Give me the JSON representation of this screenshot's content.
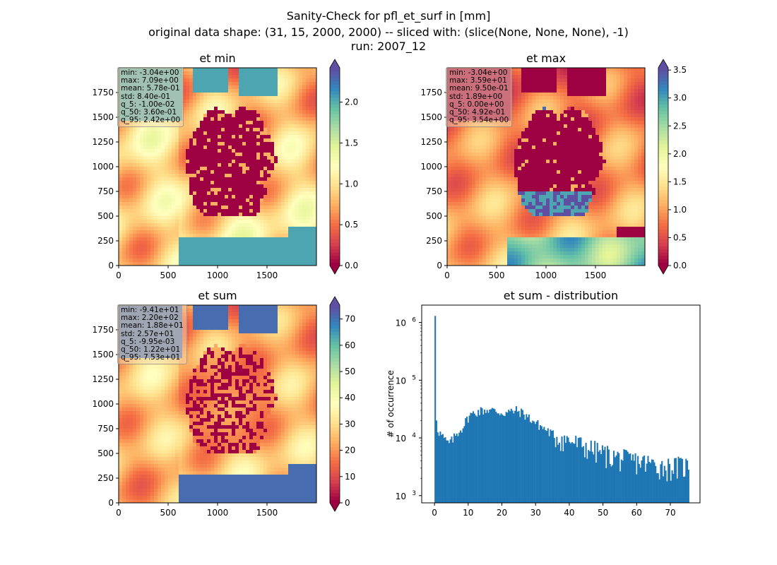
{
  "figure": {
    "title_line1": "Sanity-Check for pfl_et_surf in [mm]",
    "title_line2": "original data shape: (31, 15, 2000, 2000) -- sliced with: (slice(None, None, None), -1)",
    "title_line3": "run: 2007_12"
  },
  "colormap": [
    "#9e0142",
    "#d53e4f",
    "#f46d43",
    "#fdae61",
    "#fee08b",
    "#ffffbf",
    "#e6f598",
    "#abdda4",
    "#66c2a5",
    "#3288bd",
    "#5e4fa2"
  ],
  "chart_data": [
    {
      "type": "heatmap",
      "title": "et min",
      "xticks": [
        0,
        500,
        1000,
        1500
      ],
      "yticks": [
        0,
        250,
        500,
        750,
        1000,
        1250,
        1500,
        1750
      ],
      "xlim": [
        0,
        2000
      ],
      "ylim": [
        0,
        2000
      ],
      "colorbar": {
        "min": 0.0,
        "max": 2.42,
        "ticks": [
          "0.0",
          "0.5",
          "1.0",
          "1.5",
          "2.0"
        ],
        "tick_values": [
          0,
          0.5,
          1,
          1.5,
          2
        ]
      },
      "stats": [
        "min: -3.04e+00",
        "max: 7.09e+00",
        "mean: 5.78e-01",
        "std: 8.40e-01",
        "q_5: -1.00e-02",
        "q_50: 3.60e-01",
        "q_95: 2.42e+00"
      ]
    },
    {
      "type": "heatmap",
      "title": "et max",
      "xticks": [
        0,
        500,
        1000,
        1500
      ],
      "yticks": [
        0,
        250,
        500,
        750,
        1000,
        1250,
        1500,
        1750
      ],
      "xlim": [
        0,
        2000
      ],
      "ylim": [
        0,
        2000
      ],
      "colorbar": {
        "min": 0.0,
        "max": 3.54,
        "ticks": [
          "0.0",
          "0.5",
          "1.0",
          "1.5",
          "2.0",
          "2.5",
          "3.0",
          "3.5"
        ],
        "tick_values": [
          0,
          0.5,
          1,
          1.5,
          2,
          2.5,
          3,
          3.5
        ]
      },
      "stats": [
        "min: -3.04e+00",
        "max: 3.59e+01",
        "mean: 9.50e-01",
        "std: 1.89e+00",
        "q_5: 0.00e+00",
        "q_50: 4.92e-01",
        "q_95: 3.54e+00"
      ]
    },
    {
      "type": "heatmap",
      "title": "et sum",
      "xticks": [
        0,
        500,
        1000,
        1500
      ],
      "yticks": [
        0,
        250,
        500,
        750,
        1000,
        1250,
        1500,
        1750
      ],
      "xlim": [
        0,
        2000
      ],
      "ylim": [
        0,
        2000
      ],
      "colorbar": {
        "min": -0.01,
        "max": 75.3,
        "ticks": [
          "0",
          "10",
          "20",
          "30",
          "40",
          "50",
          "60",
          "70"
        ],
        "tick_values": [
          0,
          10,
          20,
          30,
          40,
          50,
          60,
          70
        ]
      },
      "stats": [
        "min: -9.41e+01",
        "max: 2.20e+02",
        "mean: 1.88e+01",
        "std: 2.57e+01",
        "q_5: -9.95e-03",
        "q_50: 1.22e+01",
        "q_95: 7.53e+01"
      ]
    },
    {
      "type": "bar",
      "title": "et sum - distribution",
      "ylabel": "# of occurrence",
      "yscale": "log",
      "xlim": [
        -3.8,
        78.8
      ],
      "ylim": [
        750,
        2000000
      ],
      "xticks": [
        0,
        10,
        20,
        30,
        40,
        50,
        60,
        70
      ],
      "yticks": [
        {
          "value": 1000,
          "base": "10",
          "exp": "3"
        },
        {
          "value": 10000,
          "base": "10",
          "exp": "4"
        },
        {
          "value": 100000,
          "base": "10",
          "exp": "5"
        },
        {
          "value": 1000000,
          "base": "10",
          "exp": "6"
        }
      ],
      "bin_start": 0.0,
      "bin_width": 0.376,
      "counts_envelope": [
        [
          0,
          1300000
        ],
        [
          0.4,
          17000
        ],
        [
          1,
          13000
        ],
        [
          2,
          11000
        ],
        [
          3,
          9000
        ],
        [
          4,
          8000
        ],
        [
          5,
          9000
        ],
        [
          6,
          11000
        ],
        [
          7,
          13000
        ],
        [
          8,
          15000
        ],
        [
          9,
          19000
        ],
        [
          10,
          24000
        ],
        [
          12,
          28000
        ],
        [
          14,
          30000
        ],
        [
          16,
          31000
        ],
        [
          18,
          29000
        ],
        [
          20,
          27000
        ],
        [
          22,
          28000
        ],
        [
          24,
          30000
        ],
        [
          26,
          27000
        ],
        [
          28,
          22000
        ],
        [
          30,
          18000
        ],
        [
          32,
          15000
        ],
        [
          34,
          12500
        ],
        [
          36,
          10500
        ],
        [
          38,
          9500
        ],
        [
          40,
          9000
        ],
        [
          42,
          8000
        ],
        [
          45,
          7000
        ],
        [
          48,
          6000
        ],
        [
          50,
          5500
        ],
        [
          52,
          5000
        ],
        [
          55,
          4500
        ],
        [
          58,
          4200
        ],
        [
          60,
          4000
        ],
        [
          62,
          3800
        ],
        [
          65,
          3500
        ],
        [
          68,
          3200
        ],
        [
          70,
          3200
        ],
        [
          72,
          3300
        ],
        [
          75.3,
          3300
        ]
      ]
    }
  ]
}
